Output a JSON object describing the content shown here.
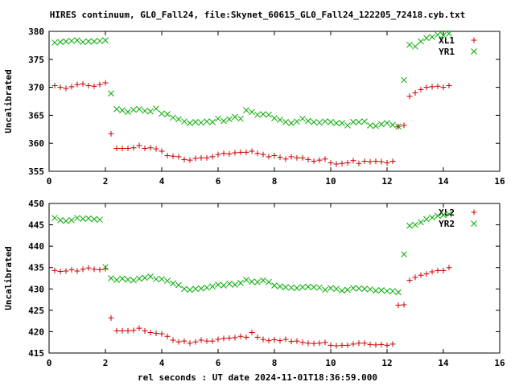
{
  "window": {
    "title": "HIRES continuum, GL0_Fall24, file:Skynet_60615_GL0_Fall24_122205_72418.cyb.txt"
  },
  "xlabel": "rel seconds : UT date 2024-11-01T18:36:59.000",
  "colors": {
    "red": "#cc0000",
    "green": "#00aa00",
    "axis": "#000000"
  },
  "chart_data": [
    {
      "type": "scatter",
      "ylabel": "Uncalibrated",
      "xlim": [
        0,
        16
      ],
      "ylim": [
        355,
        380
      ],
      "xticks": [
        0,
        2,
        4,
        6,
        8,
        10,
        12,
        14,
        16
      ],
      "yticks": [
        355,
        360,
        365,
        370,
        375,
        380
      ],
      "legend_position": "top-right",
      "series": [
        {
          "name": "XL1",
          "marker": "plus",
          "color": "#cc0000",
          "x": [
            0.2,
            0.4,
            0.6,
            0.8,
            1.0,
            1.2,
            1.4,
            1.6,
            1.8,
            2.0,
            2.2,
            2.4,
            2.6,
            2.8,
            3.0,
            3.2,
            3.4,
            3.6,
            3.8,
            4.0,
            4.2,
            4.4,
            4.6,
            4.8,
            5.0,
            5.2,
            5.4,
            5.6,
            5.8,
            6.0,
            6.2,
            6.4,
            6.6,
            6.8,
            7.0,
            7.2,
            7.4,
            7.6,
            7.8,
            8.0,
            8.2,
            8.4,
            8.6,
            8.8,
            9.0,
            9.2,
            9.4,
            9.6,
            9.8,
            10.0,
            10.2,
            10.4,
            10.6,
            10.8,
            11.0,
            11.2,
            11.4,
            11.6,
            11.8,
            12.0,
            12.2,
            12.4,
            12.6,
            12.8,
            13.0,
            13.2,
            13.4,
            13.6,
            13.8,
            14.0,
            14.2
          ],
          "y": [
            370.3,
            370.0,
            369.8,
            370.1,
            370.5,
            370.6,
            370.3,
            370.2,
            370.5,
            370.8,
            361.7,
            359.1,
            359.1,
            359.1,
            359.2,
            359.6,
            359.1,
            359.2,
            359.0,
            358.6,
            357.8,
            357.7,
            357.6,
            357.1,
            357.0,
            357.3,
            357.4,
            357.4,
            357.6,
            358.0,
            358.2,
            358.1,
            358.3,
            358.4,
            358.4,
            358.6,
            358.2,
            358.0,
            357.6,
            357.8,
            357.5,
            357.2,
            357.6,
            357.4,
            357.4,
            357.1,
            356.8,
            357.0,
            357.2,
            356.5,
            356.3,
            356.4,
            356.5,
            356.9,
            356.4,
            356.8,
            356.7,
            356.8,
            356.7,
            356.5,
            356.8,
            363.0,
            363.2,
            368.4,
            369.0,
            369.6,
            370.0,
            370.1,
            370.2,
            370.0,
            370.3
          ]
        },
        {
          "name": "YR1",
          "marker": "cross",
          "color": "#00aa00",
          "x": [
            0.2,
            0.4,
            0.6,
            0.8,
            1.0,
            1.2,
            1.4,
            1.6,
            1.8,
            2.0,
            2.2,
            2.4,
            2.6,
            2.8,
            3.0,
            3.2,
            3.4,
            3.6,
            3.8,
            4.0,
            4.2,
            4.4,
            4.6,
            4.8,
            5.0,
            5.2,
            5.4,
            5.6,
            5.8,
            6.0,
            6.2,
            6.4,
            6.6,
            6.8,
            7.0,
            7.2,
            7.4,
            7.6,
            7.8,
            8.0,
            8.2,
            8.4,
            8.6,
            8.8,
            9.0,
            9.2,
            9.4,
            9.6,
            9.8,
            10.0,
            10.2,
            10.4,
            10.6,
            10.8,
            11.0,
            11.2,
            11.4,
            11.6,
            11.8,
            12.0,
            12.2,
            12.4,
            12.6,
            12.8,
            13.0,
            13.2,
            13.4,
            13.6,
            13.8,
            14.0,
            14.2
          ],
          "y": [
            378.0,
            378.1,
            378.2,
            378.3,
            378.4,
            378.1,
            378.2,
            378.2,
            378.3,
            378.4,
            368.9,
            366.1,
            365.9,
            365.6,
            366.0,
            366.1,
            365.8,
            365.7,
            366.2,
            365.3,
            365.2,
            364.6,
            364.3,
            363.9,
            363.6,
            363.8,
            363.7,
            363.9,
            363.8,
            364.4,
            364.0,
            364.3,
            364.7,
            364.4,
            365.9,
            365.6,
            365.1,
            365.2,
            365.1,
            364.5,
            364.2,
            363.8,
            363.6,
            363.9,
            364.4,
            364.0,
            363.8,
            363.7,
            363.9,
            363.8,
            363.6,
            363.6,
            363.2,
            363.8,
            363.8,
            363.9,
            363.2,
            363.1,
            363.4,
            363.6,
            363.3,
            363.0,
            371.3,
            377.6,
            377.3,
            378.2,
            378.8,
            379.0,
            379.4,
            379.3,
            379.6
          ]
        }
      ]
    },
    {
      "type": "scatter",
      "ylabel": "Uncalibrated",
      "xlim": [
        0,
        16
      ],
      "ylim": [
        415,
        450
      ],
      "xticks": [
        0,
        2,
        4,
        6,
        8,
        10,
        12,
        14,
        16
      ],
      "yticks": [
        415,
        420,
        425,
        430,
        435,
        440,
        445,
        450
      ],
      "legend_position": "top-right",
      "series": [
        {
          "name": "XL2",
          "marker": "plus",
          "color": "#cc0000",
          "x": [
            0.2,
            0.4,
            0.6,
            0.8,
            1.0,
            1.2,
            1.4,
            1.6,
            1.8,
            2.0,
            2.2,
            2.4,
            2.6,
            2.8,
            3.0,
            3.2,
            3.4,
            3.6,
            3.8,
            4.0,
            4.2,
            4.4,
            4.6,
            4.8,
            5.0,
            5.2,
            5.4,
            5.6,
            5.8,
            6.0,
            6.2,
            6.4,
            6.6,
            6.8,
            7.0,
            7.2,
            7.4,
            7.6,
            7.8,
            8.0,
            8.2,
            8.4,
            8.6,
            8.8,
            9.0,
            9.2,
            9.4,
            9.6,
            9.8,
            10.0,
            10.2,
            10.4,
            10.6,
            10.8,
            11.0,
            11.2,
            11.4,
            11.6,
            11.8,
            12.0,
            12.2,
            12.4,
            12.6,
            12.8,
            13.0,
            13.2,
            13.4,
            13.6,
            13.8,
            14.0,
            14.2
          ],
          "y": [
            434.3,
            434.1,
            434.2,
            434.5,
            434.2,
            434.6,
            434.9,
            434.6,
            434.5,
            434.7,
            423.2,
            420.2,
            420.2,
            420.2,
            420.3,
            420.8,
            420.2,
            419.8,
            419.6,
            419.5,
            418.9,
            418.0,
            417.6,
            417.8,
            417.3,
            417.6,
            418.0,
            417.8,
            417.8,
            418.2,
            418.4,
            418.5,
            418.6,
            418.9,
            418.7,
            419.8,
            418.7,
            418.2,
            417.9,
            418.1,
            417.9,
            418.2,
            417.7,
            417.8,
            417.5,
            417.3,
            417.2,
            417.3,
            417.5,
            416.8,
            416.7,
            416.8,
            416.8,
            417.1,
            417.3,
            417.3,
            417.0,
            416.9,
            417.0,
            416.8,
            417.1,
            426.2,
            426.3,
            432.0,
            432.7,
            433.2,
            433.5,
            434.0,
            434.3,
            434.3,
            435.0
          ]
        },
        {
          "name": "YR2",
          "marker": "cross",
          "color": "#00aa00",
          "x": [
            0.2,
            0.4,
            0.6,
            0.8,
            1.0,
            1.2,
            1.4,
            1.6,
            1.8,
            2.0,
            2.2,
            2.4,
            2.6,
            2.8,
            3.0,
            3.2,
            3.4,
            3.6,
            3.8,
            4.0,
            4.2,
            4.4,
            4.6,
            4.8,
            5.0,
            5.2,
            5.4,
            5.6,
            5.8,
            6.0,
            6.2,
            6.4,
            6.6,
            6.8,
            7.0,
            7.2,
            7.4,
            7.6,
            7.8,
            8.0,
            8.2,
            8.4,
            8.6,
            8.8,
            9.0,
            9.2,
            9.4,
            9.6,
            9.8,
            10.0,
            10.2,
            10.4,
            10.6,
            10.8,
            11.0,
            11.2,
            11.4,
            11.6,
            11.8,
            12.0,
            12.2,
            12.4,
            12.6,
            12.8,
            13.0,
            13.2,
            13.4,
            13.6,
            13.8,
            14.0,
            14.2
          ],
          "y": [
            446.6,
            446.1,
            445.9,
            446.1,
            446.6,
            446.4,
            446.5,
            446.3,
            446.2,
            435.1,
            432.5,
            432.1,
            432.4,
            432.2,
            432.0,
            432.4,
            432.6,
            432.9,
            432.3,
            432.3,
            431.9,
            431.3,
            430.9,
            430.0,
            429.8,
            430.0,
            430.1,
            430.3,
            430.6,
            431.0,
            430.8,
            431.2,
            431.0,
            431.4,
            432.1,
            431.7,
            431.6,
            432.0,
            431.6,
            430.8,
            430.6,
            430.4,
            430.3,
            430.2,
            430.4,
            430.5,
            430.4,
            430.3,
            429.8,
            430.2,
            430.0,
            429.6,
            429.8,
            430.2,
            430.1,
            430.0,
            429.9,
            429.6,
            429.7,
            429.5,
            429.5,
            429.2,
            438.1,
            444.8,
            445.0,
            445.6,
            446.3,
            446.7,
            447.1,
            447.3,
            447.5
          ]
        }
      ]
    }
  ]
}
